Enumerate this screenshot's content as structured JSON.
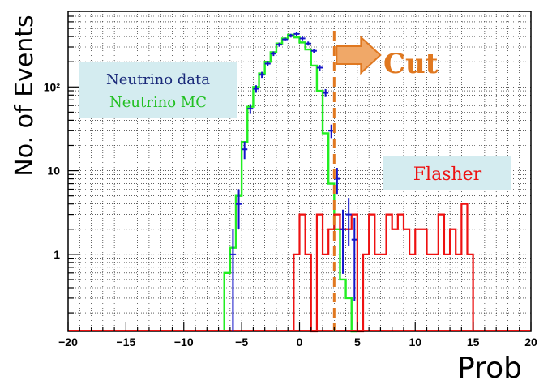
{
  "chart_data": {
    "type": "histogram",
    "title": "",
    "xlabel": "Prob",
    "ylabel": "No. of Events",
    "xlim": [
      -20,
      20
    ],
    "ylim": [
      0.12,
      800
    ],
    "y_scale": "log",
    "grid": true,
    "x_ticks": [
      -20,
      -15,
      -10,
      -5,
      0,
      5,
      10,
      15,
      20
    ],
    "x_tick_labels": [
      "−20",
      "−15",
      "−10",
      "−5",
      "0",
      "5",
      "10",
      "15",
      "20"
    ],
    "y_ticks": [
      1,
      10,
      100
    ],
    "y_tick_labels": [
      "1",
      "10",
      "10²"
    ],
    "bin_width": 0.5,
    "legend": {
      "placement": "upper-left",
      "entries": [
        "Neutrino data",
        "Neutrino MC"
      ],
      "colors": [
        "#1a2a7a",
        "#22c022"
      ]
    },
    "annotations": [
      {
        "text": "Cut",
        "x": 3.0,
        "color": "#e07820",
        "style": "dashed vertical line with arrow"
      },
      {
        "text": "Flasher",
        "color": "#ee1111",
        "background": "#d4ecf0"
      }
    ],
    "series": [
      {
        "name": "Neutrino MC",
        "color": "#22ee22",
        "kind": "step",
        "x_low": [
          -6.5,
          -6.0,
          -5.5,
          -5.0,
          -4.5,
          -4.0,
          -3.5,
          -3.0,
          -2.5,
          -2.0,
          -1.5,
          -1.0,
          -0.5,
          0.0,
          0.5,
          1.0,
          1.5,
          2.0,
          2.5,
          3.0,
          3.5,
          4.0,
          4.5
        ],
        "values": [
          0.6,
          1.2,
          5,
          22,
          58,
          100,
          145,
          200,
          260,
          330,
          380,
          420,
          390,
          340,
          280,
          180,
          90,
          28,
          7,
          2,
          0.5,
          0.3,
          0
        ]
      },
      {
        "name": "Neutrino data",
        "color": "#1414c8",
        "kind": "points",
        "x": [
          -5.75,
          -5.25,
          -4.75,
          -4.25,
          -3.75,
          -3.25,
          -2.75,
          -2.25,
          -1.75,
          -1.25,
          -0.75,
          -0.25,
          0.25,
          0.75,
          1.25,
          1.75,
          2.25,
          2.75,
          3.25,
          3.75,
          4.25,
          4.75
        ],
        "values": [
          1.0,
          4,
          18,
          55,
          95,
          140,
          190,
          250,
          320,
          370,
          410,
          430,
          380,
          330,
          270,
          170,
          85,
          30,
          8,
          2,
          3,
          1.5
        ]
      },
      {
        "name": "Flasher",
        "color": "#ee1111",
        "kind": "step",
        "x_low": [
          -0.5,
          0.0,
          0.5,
          1.0,
          1.5,
          2.0,
          2.5,
          3.0,
          3.5,
          4.0,
          4.5,
          5.0,
          5.5,
          6.0,
          6.5,
          7.0,
          7.5,
          8.0,
          8.5,
          9.0,
          9.5,
          10.0,
          10.5,
          11.0,
          11.5,
          12.0,
          12.5,
          13.0,
          13.5,
          14.0,
          14.5
        ],
        "values": [
          1,
          3,
          1,
          0,
          3,
          1,
          2,
          3,
          2,
          2,
          3,
          0,
          1,
          3,
          1,
          1,
          3,
          2,
          3,
          2,
          1,
          2,
          2,
          1,
          1,
          3,
          1,
          2,
          1,
          4,
          1
        ]
      }
    ]
  }
}
